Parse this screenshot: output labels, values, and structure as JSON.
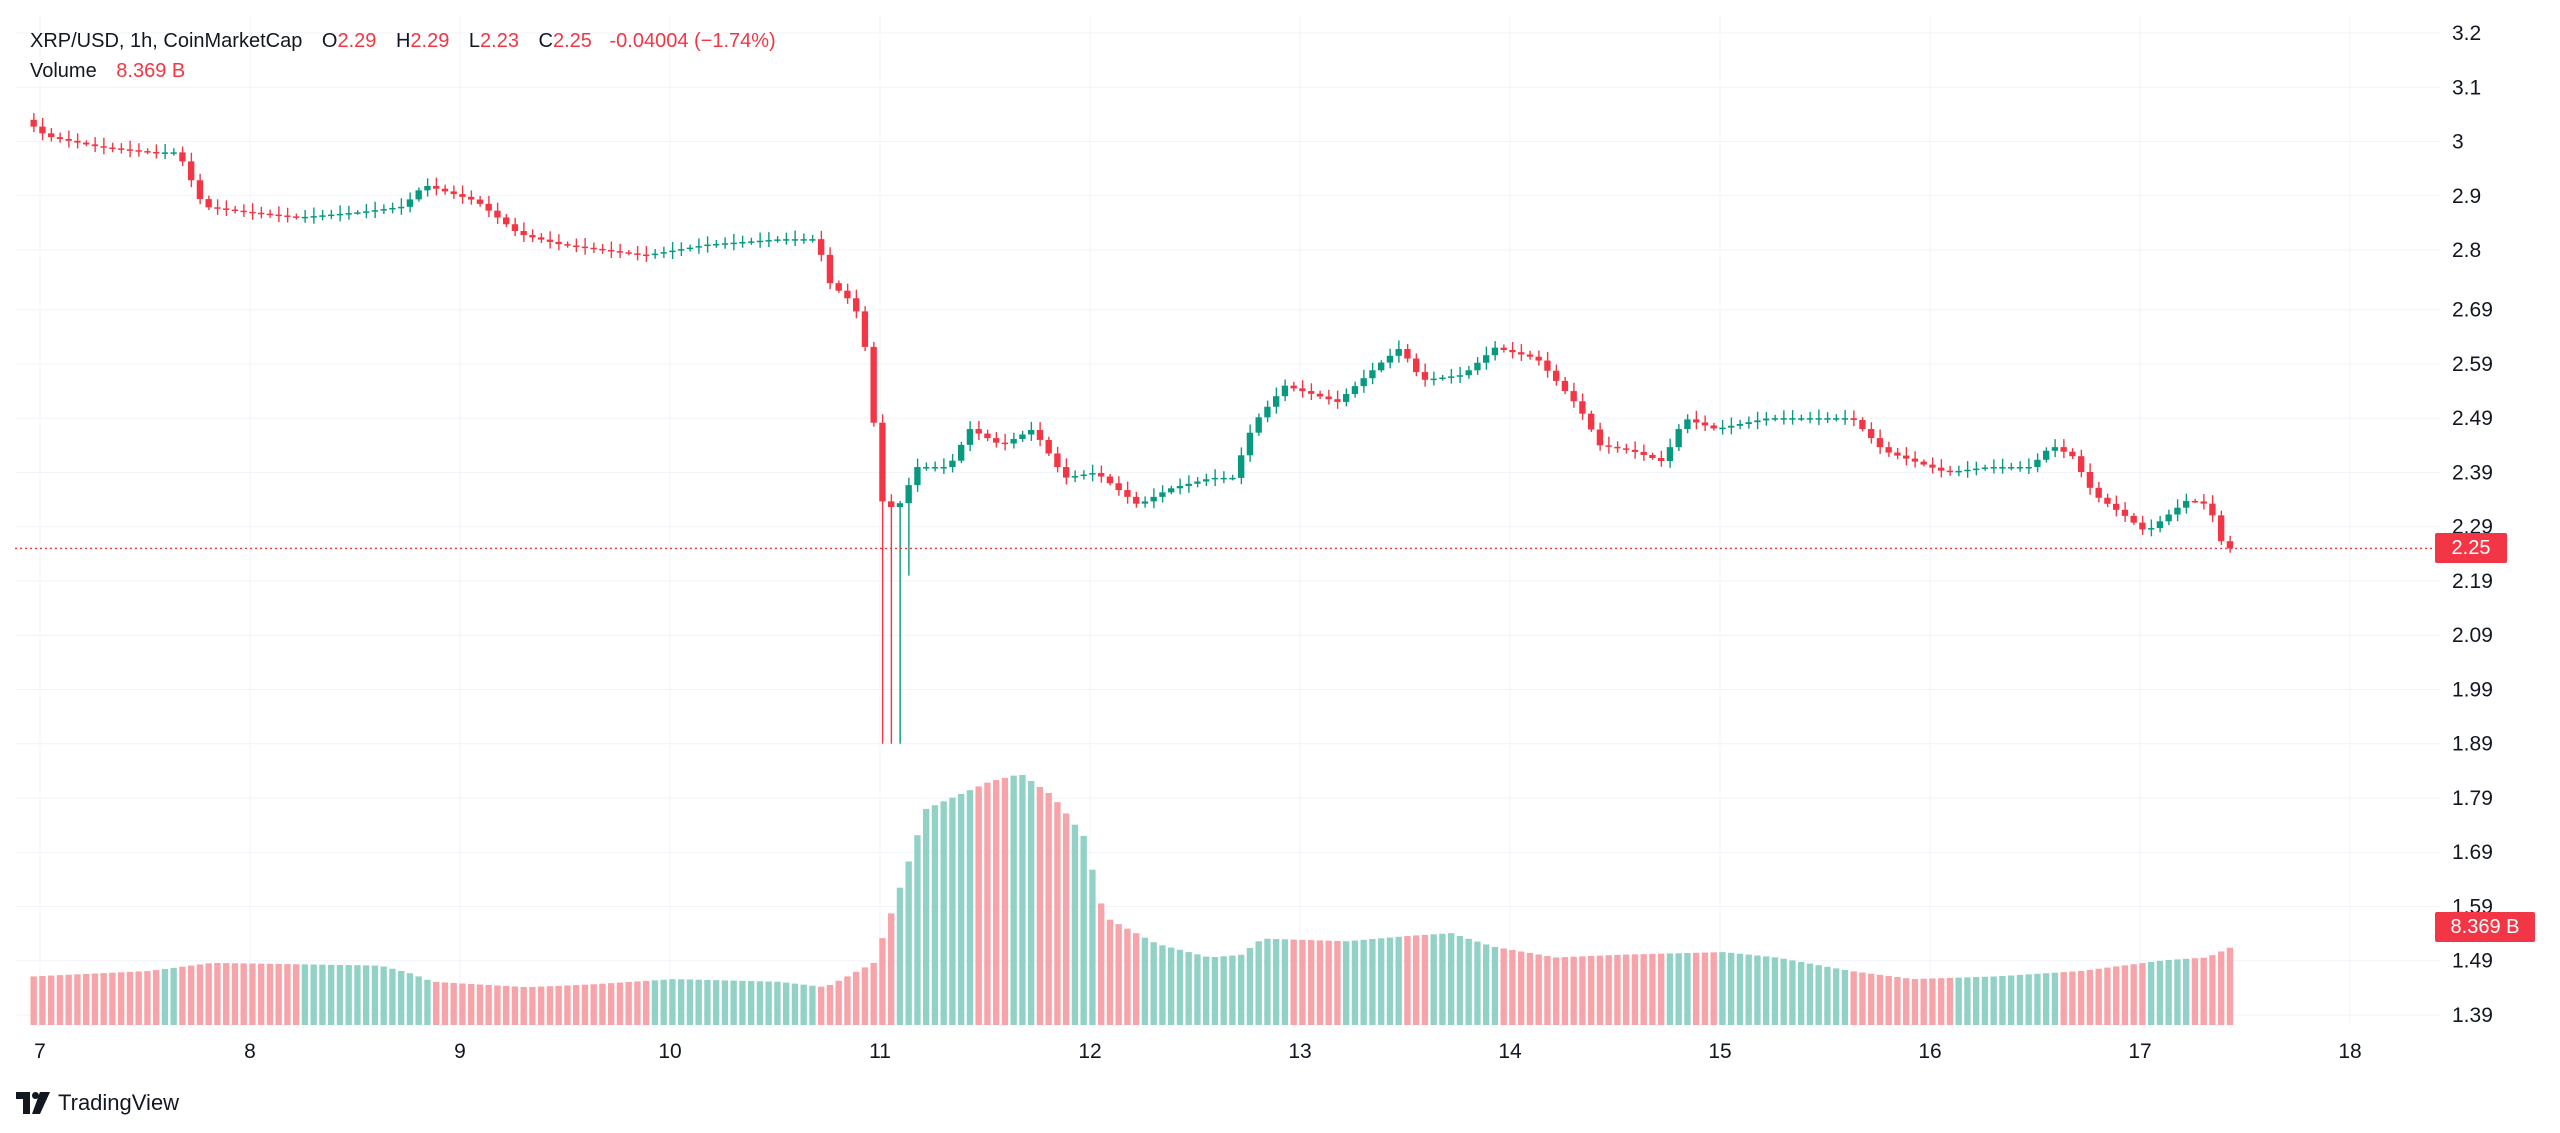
{
  "header": {
    "symbol": "XRP/USD, 1h, CoinMarketCap",
    "open_label": "O",
    "open": "2.29",
    "high_label": "H",
    "high": "2.29",
    "low_label": "L",
    "low": "2.23",
    "close_label": "C",
    "close": "2.25",
    "change": "-0.04004 (−1.74%)",
    "volume_label": "Volume",
    "volume": "8.369 B"
  },
  "price_tag": "2.25",
  "volume_tag": "8.369 B",
  "brand": "TradingView",
  "colors": {
    "up": "#089981",
    "down": "#f23645",
    "vol_up": "#92d2c6",
    "vol_down": "#f7a3aa",
    "grid": "#f0f3fa",
    "text": "#131722"
  },
  "chart_data": {
    "type": "candlestick",
    "title": "XRP/USD, 1h, CoinMarketCap",
    "xlabel": "",
    "ylabel": "",
    "ylim": [
      1.37,
      3.22
    ],
    "y_ticks": [
      "3.2",
      "3.1",
      "3",
      "2.9",
      "2.8",
      "2.69",
      "2.59",
      "2.49",
      "2.39",
      "2.29",
      "2.19",
      "2.09",
      "1.99",
      "1.89",
      "1.79",
      "1.69",
      "1.59",
      "1.49",
      "1.39"
    ],
    "y_tick_values": [
      3.2,
      3.1,
      3.0,
      2.9,
      2.8,
      2.69,
      2.59,
      2.49,
      2.39,
      2.29,
      2.19,
      2.09,
      1.99,
      1.89,
      1.79,
      1.69,
      1.59,
      1.49,
      1.39
    ],
    "x_ticks": [
      "7",
      "8",
      "9",
      "10",
      "11",
      "12",
      "13",
      "14",
      "15",
      "16",
      "17",
      "18"
    ],
    "x_range_days": [
      7,
      18.45
    ],
    "last_price": 2.25,
    "price_anchors": [
      [
        6.95,
        3.04
      ],
      [
        7.05,
        3.01
      ],
      [
        7.3,
        2.99
      ],
      [
        7.55,
        2.98
      ],
      [
        7.68,
        2.98
      ],
      [
        7.8,
        2.88
      ],
      [
        8.0,
        2.87
      ],
      [
        8.25,
        2.86
      ],
      [
        8.55,
        2.87
      ],
      [
        8.75,
        2.88
      ],
      [
        8.85,
        2.92
      ],
      [
        9.1,
        2.89
      ],
      [
        9.3,
        2.83
      ],
      [
        9.5,
        2.81
      ],
      [
        9.7,
        2.8
      ],
      [
        9.9,
        2.79
      ],
      [
        10.2,
        2.81
      ],
      [
        10.55,
        2.82
      ],
      [
        10.72,
        2.82
      ],
      [
        10.78,
        2.74
      ],
      [
        10.9,
        2.7
      ],
      [
        10.97,
        2.59
      ],
      [
        11.02,
        2.34
      ],
      [
        11.1,
        2.32
      ],
      [
        11.2,
        2.4
      ],
      [
        11.35,
        2.4
      ],
      [
        11.45,
        2.47
      ],
      [
        11.6,
        2.44
      ],
      [
        11.75,
        2.47
      ],
      [
        11.9,
        2.38
      ],
      [
        12.05,
        2.39
      ],
      [
        12.25,
        2.33
      ],
      [
        12.4,
        2.36
      ],
      [
        12.6,
        2.38
      ],
      [
        12.7,
        2.38
      ],
      [
        12.8,
        2.48
      ],
      [
        12.95,
        2.55
      ],
      [
        13.2,
        2.52
      ],
      [
        13.4,
        2.59
      ],
      [
        13.5,
        2.62
      ],
      [
        13.6,
        2.56
      ],
      [
        13.8,
        2.57
      ],
      [
        13.95,
        2.62
      ],
      [
        14.15,
        2.6
      ],
      [
        14.35,
        2.51
      ],
      [
        14.45,
        2.44
      ],
      [
        14.6,
        2.43
      ],
      [
        14.75,
        2.41
      ],
      [
        14.85,
        2.49
      ],
      [
        15.0,
        2.47
      ],
      [
        15.25,
        2.49
      ],
      [
        15.45,
        2.49
      ],
      [
        15.65,
        2.49
      ],
      [
        15.8,
        2.43
      ],
      [
        15.95,
        2.41
      ],
      [
        16.1,
        2.39
      ],
      [
        16.3,
        2.4
      ],
      [
        16.5,
        2.4
      ],
      [
        16.6,
        2.44
      ],
      [
        16.7,
        2.42
      ],
      [
        16.8,
        2.35
      ],
      [
        16.95,
        2.31
      ],
      [
        17.05,
        2.28
      ],
      [
        17.15,
        2.31
      ],
      [
        17.25,
        2.34
      ],
      [
        17.35,
        2.33
      ],
      [
        17.42,
        2.25
      ]
    ],
    "volume_anchors": [
      [
        6.95,
        0.18
      ],
      [
        7.5,
        0.2
      ],
      [
        7.8,
        0.23
      ],
      [
        8.6,
        0.22
      ],
      [
        8.75,
        0.19
      ],
      [
        8.85,
        0.16
      ],
      [
        9.3,
        0.14
      ],
      [
        9.6,
        0.15
      ],
      [
        10.0,
        0.17
      ],
      [
        10.5,
        0.16
      ],
      [
        10.72,
        0.14
      ],
      [
        10.8,
        0.17
      ],
      [
        10.95,
        0.23
      ],
      [
        11.05,
        0.45
      ],
      [
        11.2,
        0.8
      ],
      [
        11.5,
        0.9
      ],
      [
        11.65,
        0.93
      ],
      [
        11.8,
        0.85
      ],
      [
        11.95,
        0.7
      ],
      [
        12.05,
        0.4
      ],
      [
        12.3,
        0.3
      ],
      [
        12.55,
        0.25
      ],
      [
        12.7,
        0.26
      ],
      [
        12.8,
        0.32
      ],
      [
        13.2,
        0.31
      ],
      [
        13.5,
        0.33
      ],
      [
        13.7,
        0.34
      ],
      [
        13.9,
        0.29
      ],
      [
        14.2,
        0.25
      ],
      [
        14.5,
        0.26
      ],
      [
        15.0,
        0.27
      ],
      [
        15.25,
        0.25
      ],
      [
        15.6,
        0.2
      ],
      [
        15.9,
        0.17
      ],
      [
        16.3,
        0.18
      ],
      [
        16.7,
        0.2
      ],
      [
        17.1,
        0.24
      ],
      [
        17.3,
        0.25
      ],
      [
        17.42,
        0.29
      ]
    ],
    "volume_max_label": "8.369 B"
  }
}
